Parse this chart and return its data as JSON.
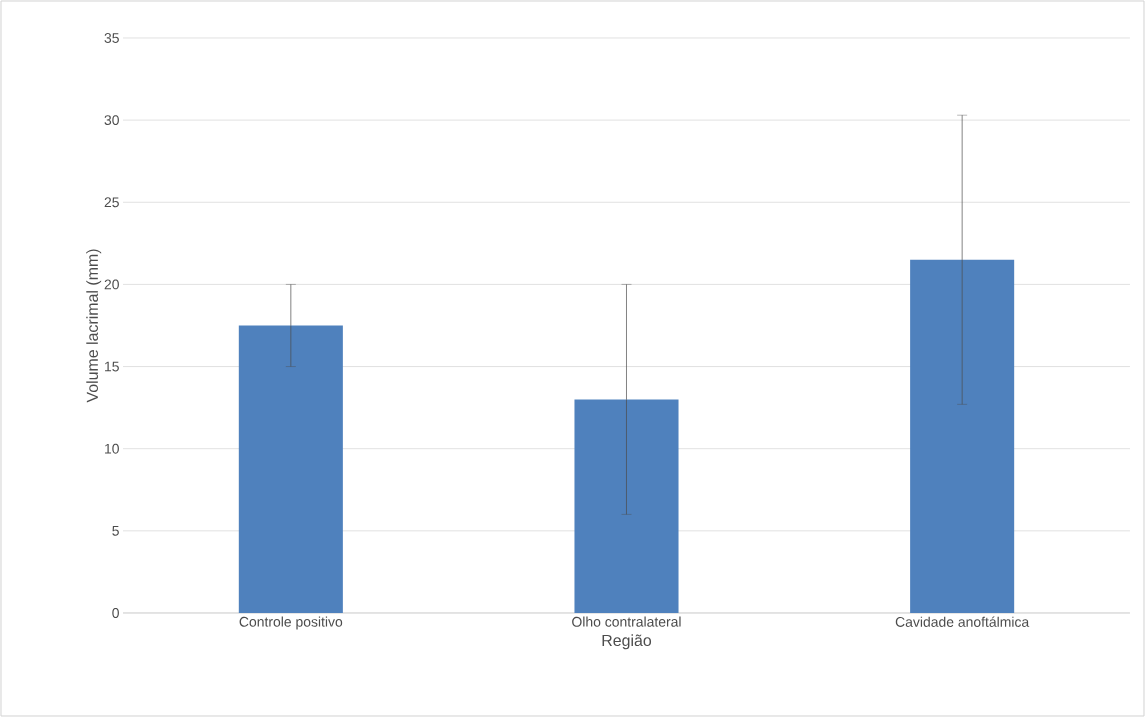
{
  "chart_data": {
    "type": "bar",
    "xlabel": "Região",
    "ylabel": "Volume lacrimal (mm)",
    "categories": [
      "Controle positivo",
      "Olho contralateral",
      "Cavidade anoftálmica"
    ],
    "values": [
      17.5,
      13,
      21.5
    ],
    "errors": [
      2.5,
      7,
      8.8
    ],
    "color": "#4f81bd",
    "ylim": [
      0,
      35
    ],
    "yticks": [
      0,
      5,
      10,
      15,
      20,
      25,
      30,
      35
    ],
    "grid": "y"
  }
}
